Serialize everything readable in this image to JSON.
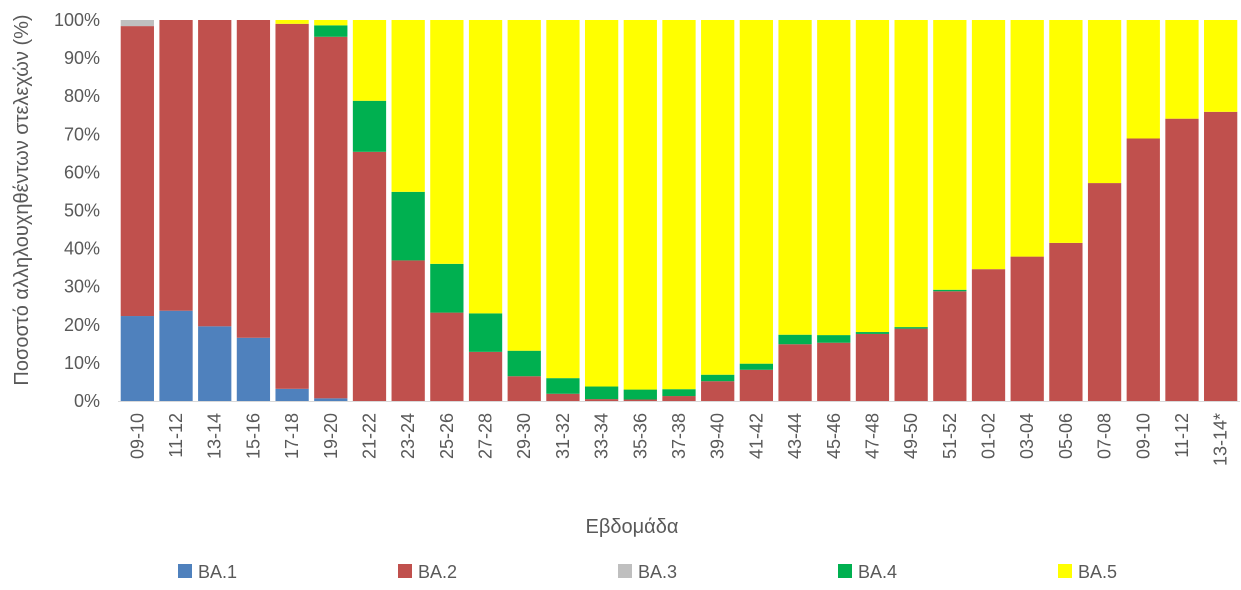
{
  "chart_data": {
    "type": "bar",
    "stacked": true,
    "percent": true,
    "title": "",
    "xlabel": "Εβδομάδα",
    "ylabel": "Ποσοστό αλληλουχηθέντων στελεχών (%)",
    "ylim": [
      0,
      100
    ],
    "yticks": [
      "0%",
      "10%",
      "20%",
      "30%",
      "40%",
      "50%",
      "60%",
      "70%",
      "80%",
      "90%",
      "100%"
    ],
    "grid": false,
    "legend_position": "bottom",
    "categories": [
      "09-10",
      "11-12",
      "13-14",
      "15-16",
      "17-18",
      "19-20",
      "21-22",
      "23-24",
      "25-26",
      "27-28",
      "29-30",
      "31-32",
      "33-34",
      "35-36",
      "37-38",
      "39-40",
      "41-42",
      "43-44",
      "45-46",
      "47-48",
      "49-50",
      "51-52",
      "01-02",
      "03-04",
      "05-06",
      "07-08",
      "09-10",
      "11-12",
      "13-14*"
    ],
    "series": [
      {
        "name": "BA.1",
        "color": "#4F81BD",
        "values": [
          22.3,
          23.7,
          19.6,
          16.6,
          3.2,
          0.7,
          0,
          0,
          0,
          0,
          0,
          0,
          0,
          0,
          0,
          0,
          0,
          0,
          0,
          0,
          0,
          0,
          0,
          0,
          0,
          0,
          0,
          0,
          0
        ]
      },
      {
        "name": "BA.2",
        "color": "#C0504D",
        "values": [
          76.1,
          76.3,
          80.4,
          83.4,
          95.8,
          94.9,
          65.4,
          36.9,
          23.2,
          12.9,
          6.5,
          1.9,
          0.5,
          0.4,
          1.3,
          5.2,
          8.2,
          14.9,
          15.3,
          17.6,
          19.0,
          28.8,
          34.6,
          37.9,
          41.5,
          57.2,
          68.9,
          74.1,
          75.9
        ]
      },
      {
        "name": "BA.3",
        "color": "#BFBFBF",
        "values": [
          1.6,
          0,
          0,
          0,
          0,
          0,
          0,
          0,
          0,
          0,
          0,
          0,
          0,
          0,
          0,
          0,
          0,
          0,
          0,
          0,
          0,
          0,
          0,
          0,
          0,
          0,
          0,
          0,
          0
        ]
      },
      {
        "name": "BA.4",
        "color": "#00B050",
        "values": [
          0,
          0,
          0,
          0,
          0,
          3.0,
          13.4,
          18.0,
          12.8,
          10.1,
          6.7,
          4.1,
          3.3,
          2.6,
          1.8,
          1.7,
          1.6,
          2.5,
          2.0,
          0.5,
          0.4,
          0.4,
          0,
          0,
          0,
          0,
          0,
          0,
          0
        ]
      },
      {
        "name": "BA.5",
        "color": "#FFFF00",
        "values": [
          0,
          0,
          0,
          0,
          1.0,
          1.4,
          21.2,
          45.1,
          64.0,
          77.0,
          86.8,
          94.0,
          96.2,
          97.0,
          96.9,
          93.1,
          90.2,
          82.6,
          82.7,
          81.9,
          80.6,
          70.8,
          65.4,
          62.1,
          58.5,
          42.8,
          31.1,
          25.9,
          24.1
        ]
      }
    ]
  }
}
